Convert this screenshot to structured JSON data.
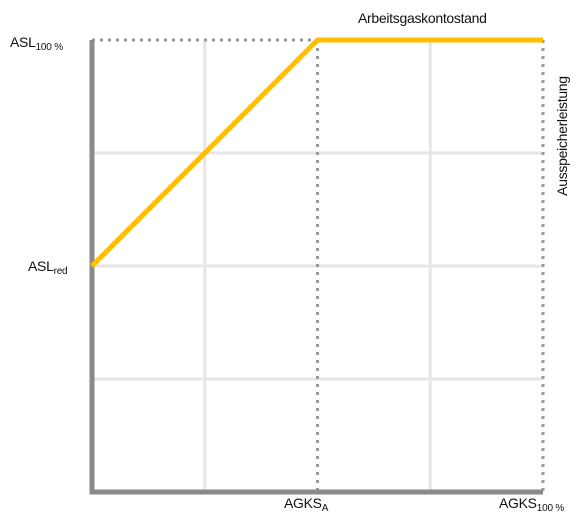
{
  "chart_data": {
    "type": "line",
    "series_label": "Arbeitsgaskontostand",
    "right_label": "Ausspeicherleistung",
    "y_ticks": [
      {
        "value": 100,
        "main": "ASL",
        "sub": "100 %"
      },
      {
        "value": 50,
        "main": "ASL",
        "sub": "red"
      }
    ],
    "x_ticks": [
      {
        "value": 50,
        "main": "AGKS",
        "sub": "A"
      },
      {
        "value": 100,
        "main": "AGKS",
        "sub": "100 %"
      }
    ],
    "xlim": [
      0,
      100
    ],
    "ylim": [
      0,
      100
    ],
    "grid": true,
    "series": [
      {
        "color": "#FFBF00",
        "x": [
          0,
          50,
          100
        ],
        "y": [
          50,
          100,
          100
        ]
      }
    ],
    "colors": {
      "axis": "#8a8a8a",
      "grid": "#e6e6e6",
      "dotted": "#999999",
      "line": "#FFBF00"
    }
  }
}
